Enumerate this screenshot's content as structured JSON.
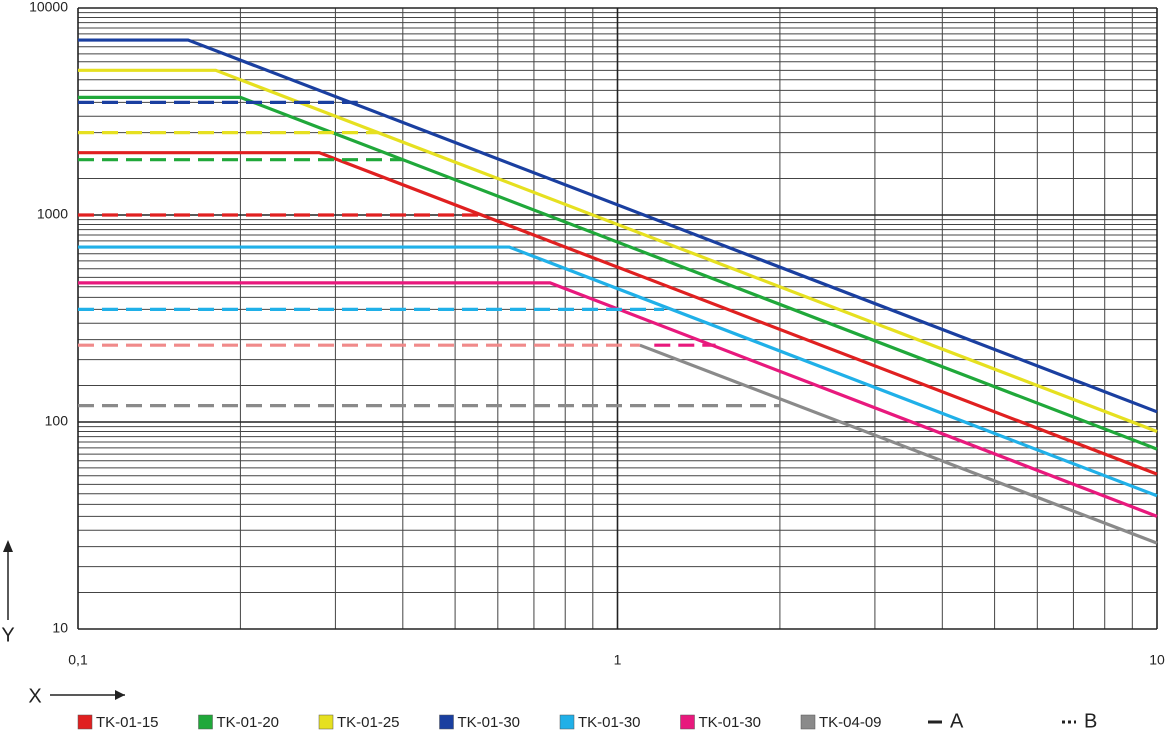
{
  "chart_data": {
    "type": "line",
    "x_label": "X",
    "y_label": "Y",
    "xlog": true,
    "ylog": true,
    "grid": true,
    "minor_grid": true,
    "xlim": [
      0.1,
      10
    ],
    "ylim": [
      10,
      10000
    ],
    "xticks": [
      {
        "value": 0.1,
        "label": "0,1"
      },
      1,
      10
    ],
    "yticks": [
      10,
      100,
      1000,
      10000
    ],
    "line_styles": [
      {
        "name": "A",
        "dash": "solid"
      },
      {
        "name": "B",
        "dash": "dashed"
      }
    ],
    "series": [
      {
        "name": "TK-01-15",
        "color": "#e02020",
        "style": "A",
        "x": [
          0.1,
          0.28,
          10
        ],
        "values": [
          2000,
          2000,
          56
        ]
      },
      {
        "name": "TK-01-20",
        "color": "#20a83a",
        "style": "A",
        "x": [
          0.1,
          0.2,
          10
        ],
        "values": [
          3700,
          3700,
          74
        ]
      },
      {
        "name": "TK-01-25",
        "color": "#e6e020",
        "style": "A",
        "x": [
          0.1,
          0.18,
          10
        ],
        "values": [
          5000,
          5000,
          90
        ]
      },
      {
        "name": "TK-01-30",
        "color": "#1a3fa0",
        "style": "A",
        "x": [
          0.1,
          0.16,
          10
        ],
        "values": [
          7000,
          7000,
          112
        ]
      },
      {
        "name": "TK-01-30",
        "color": "#20b0e8",
        "style": "A",
        "x": [
          0.1,
          0.63,
          10
        ],
        "values": [
          700,
          700,
          44
        ]
      },
      {
        "name": "TK-01-30",
        "color": "#e8197d",
        "style": "A",
        "x": [
          0.1,
          0.75,
          10
        ],
        "values": [
          470,
          470,
          35
        ]
      },
      {
        "name": "TK-04-09",
        "color": "#8a8a8a",
        "style": "A",
        "x": [
          1.1,
          10
        ],
        "values": [
          235,
          26
        ]
      },
      {
        "name": "TK-01-15",
        "color": "#e02020",
        "style": "B",
        "x": [
          0.1,
          0.56
        ],
        "values": [
          1000,
          1000
        ]
      },
      {
        "name": "TK-01-20",
        "color": "#20a83a",
        "style": "B",
        "x": [
          0.1,
          0.4
        ],
        "values": [
          1850,
          1850
        ]
      },
      {
        "name": "TK-01-25",
        "color": "#e6e020",
        "style": "B",
        "x": [
          0.1,
          0.36
        ],
        "values": [
          2500,
          2500
        ]
      },
      {
        "name": "TK-01-30",
        "color": "#1a3fa0",
        "style": "B",
        "x": [
          0.1,
          0.33
        ],
        "values": [
          3500,
          3500
        ]
      },
      {
        "name": "TK-01-30",
        "color": "#20b0e8",
        "style": "B",
        "x": [
          0.1,
          1.22
        ],
        "values": [
          350,
          350
        ]
      },
      {
        "name": "TK-01-30",
        "color": "#f08a8a",
        "style": "B",
        "x": [
          0.1,
          1.1
        ],
        "values": [
          235,
          235
        ]
      },
      {
        "name": "TK-01-30",
        "color": "#e8197d",
        "style": "B",
        "x": [
          1.17,
          1.52
        ],
        "values": [
          235,
          235
        ]
      },
      {
        "name": "TK-04-09",
        "color": "#8a8a8a",
        "style": "B",
        "x": [
          0.1,
          2.0
        ],
        "values": [
          120,
          120
        ]
      }
    ]
  }
}
